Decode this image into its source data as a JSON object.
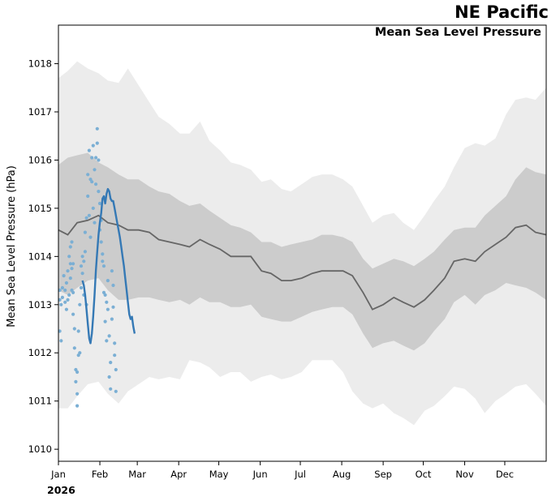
{
  "header": {
    "title": "NE Pacific",
    "subtitle": "Mean Sea Level Pressure",
    "year_label": "2026"
  },
  "chart_data": {
    "type": "line",
    "title": "NE Pacific",
    "subtitle": "Mean Sea Level Pressure",
    "ylabel": "Mean Sea Level Pressure (hPa)",
    "xlabel": "",
    "ylim": [
      1009.75,
      1018.8
    ],
    "xlim_day_of_year": [
      1,
      366
    ],
    "yticks": [
      1010,
      1011,
      1012,
      1013,
      1014,
      1015,
      1016,
      1017,
      1018
    ],
    "month_ticks": [
      {
        "label": "Jan",
        "day": 1
      },
      {
        "label": "Feb",
        "day": 32
      },
      {
        "label": "Mar",
        "day": 60
      },
      {
        "label": "Apr",
        "day": 91
      },
      {
        "label": "May",
        "day": 121
      },
      {
        "label": "Jun",
        "day": 152
      },
      {
        "label": "Jul",
        "day": 182
      },
      {
        "label": "Aug",
        "day": 213
      },
      {
        "label": "Sep",
        "day": 244
      },
      {
        "label": "Oct",
        "day": 274
      },
      {
        "label": "Nov",
        "day": 305
      },
      {
        "label": "Dec",
        "day": 335
      }
    ],
    "grid": false,
    "legend": "none",
    "colors": {
      "outer_band": "#ececec",
      "inner_band": "#cccccc",
      "climatology_line": "#666666",
      "observed_line": "#3579b5",
      "observed_points": "#7bafd4"
    },
    "climatology_days": [
      1,
      8,
      15,
      23,
      31,
      38,
      46,
      53,
      61,
      69,
      76,
      84,
      92,
      99,
      107,
      114,
      122,
      130,
      137,
      145,
      153,
      160,
      168,
      175,
      183,
      191,
      198,
      206,
      214,
      221,
      229,
      236,
      244,
      252,
      259,
      267,
      275,
      282,
      290,
      297,
      305,
      313,
      320,
      328,
      336,
      343,
      351,
      358,
      366
    ],
    "climatology_mean": [
      1014.55,
      1014.45,
      1014.7,
      1014.75,
      1014.85,
      1014.7,
      1014.65,
      1014.55,
      1014.55,
      1014.5,
      1014.35,
      1014.3,
      1014.25,
      1014.2,
      1014.35,
      1014.25,
      1014.15,
      1014.0,
      1014.0,
      1014.0,
      1013.7,
      1013.65,
      1013.5,
      1013.5,
      1013.55,
      1013.65,
      1013.7,
      1013.7,
      1013.7,
      1013.6,
      1013.25,
      1012.9,
      1013.0,
      1013.15,
      1013.05,
      1012.95,
      1013.1,
      1013.3,
      1013.55,
      1013.9,
      1013.95,
      1013.9,
      1014.1,
      1014.25,
      1014.4,
      1014.6,
      1014.65,
      1014.5,
      1014.45
    ],
    "climatology_inner_upper": [
      1015.9,
      1016.05,
      1016.1,
      1016.15,
      1015.95,
      1015.85,
      1015.7,
      1015.6,
      1015.6,
      1015.45,
      1015.35,
      1015.3,
      1015.15,
      1015.05,
      1015.1,
      1014.95,
      1014.8,
      1014.65,
      1014.6,
      1014.5,
      1014.3,
      1014.3,
      1014.2,
      1014.25,
      1014.3,
      1014.35,
      1014.45,
      1014.45,
      1014.4,
      1014.3,
      1013.95,
      1013.75,
      1013.85,
      1013.95,
      1013.9,
      1013.8,
      1013.95,
      1014.1,
      1014.35,
      1014.55,
      1014.6,
      1014.6,
      1014.85,
      1015.05,
      1015.25,
      1015.6,
      1015.85,
      1015.75,
      1015.7
    ],
    "climatology_inner_lower": [
      1013.3,
      1013.2,
      1013.35,
      1013.5,
      1013.55,
      1013.3,
      1013.1,
      1013.1,
      1013.15,
      1013.15,
      1013.1,
      1013.05,
      1013.1,
      1013.0,
      1013.15,
      1013.05,
      1013.05,
      1012.95,
      1012.95,
      1013.0,
      1012.75,
      1012.7,
      1012.65,
      1012.65,
      1012.75,
      1012.85,
      1012.9,
      1012.95,
      1012.95,
      1012.8,
      1012.4,
      1012.1,
      1012.2,
      1012.25,
      1012.15,
      1012.05,
      1012.2,
      1012.45,
      1012.7,
      1013.05,
      1013.2,
      1013.0,
      1013.2,
      1013.3,
      1013.45,
      1013.4,
      1013.35,
      1013.25,
      1013.1
    ],
    "climatology_outer_upper": [
      1017.7,
      1017.85,
      1018.05,
      1017.9,
      1017.8,
      1017.65,
      1017.6,
      1017.9,
      1017.55,
      1017.2,
      1016.9,
      1016.75,
      1016.55,
      1016.55,
      1016.8,
      1016.4,
      1016.2,
      1015.95,
      1015.9,
      1015.8,
      1015.55,
      1015.6,
      1015.4,
      1015.35,
      1015.5,
      1015.65,
      1015.7,
      1015.7,
      1015.6,
      1015.45,
      1015.05,
      1014.7,
      1014.85,
      1014.9,
      1014.7,
      1014.55,
      1014.85,
      1015.15,
      1015.45,
      1015.85,
      1016.25,
      1016.35,
      1016.3,
      1016.45,
      1016.95,
      1017.25,
      1017.3,
      1017.25,
      1017.5
    ],
    "climatology_outer_lower": [
      1010.85,
      1010.85,
      1011.1,
      1011.35,
      1011.4,
      1011.15,
      1010.95,
      1011.2,
      1011.35,
      1011.5,
      1011.45,
      1011.5,
      1011.45,
      1011.85,
      1011.8,
      1011.7,
      1011.5,
      1011.6,
      1011.6,
      1011.4,
      1011.5,
      1011.55,
      1011.45,
      1011.5,
      1011.6,
      1011.85,
      1011.85,
      1011.85,
      1011.6,
      1011.2,
      1010.95,
      1010.85,
      1010.95,
      1010.75,
      1010.65,
      1010.5,
      1010.8,
      1010.9,
      1011.1,
      1011.3,
      1011.25,
      1011.05,
      1010.75,
      1011.0,
      1011.15,
      1011.3,
      1011.35,
      1011.15,
      1010.9
    ],
    "observed_days": [
      10,
      11,
      12,
      13,
      14,
      15,
      16,
      17,
      18,
      19,
      20,
      21,
      22,
      23,
      24,
      25,
      26,
      27,
      28,
      29,
      30,
      31,
      32,
      33,
      34,
      35,
      36,
      37,
      38,
      39,
      40,
      41,
      42,
      43,
      44,
      45,
      46,
      47,
      48,
      49,
      50,
      51,
      52,
      53,
      54,
      55,
      56,
      57,
      58,
      59
    ],
    "observed_line": [
      1013.5,
      1013.4,
      1013.2,
      1012.9,
      1012.6,
      1012.3,
      1012.2,
      1012.4,
      1012.75,
      1013.2,
      1013.7,
      1014.1,
      1014.45,
      1014.7,
      1014.9,
      1015.2,
      1015.25,
      1015.1,
      1015.3,
      1015.4,
      1015.35,
      1015.2,
      1015.15,
      1015.15,
      1015.0,
      1014.85,
      1014.7,
      1014.55,
      1014.4,
      1014.2,
      1014.0,
      1013.8,
      1013.55,
      1013.3,
      1013.05,
      1012.8,
      1012.7,
      1012.75,
      1012.55,
      1012.4
    ],
    "observed_line_days": [
      19,
      20,
      21,
      22,
      23,
      24,
      25,
      26,
      27,
      28,
      29,
      30,
      31,
      32,
      33,
      34,
      35,
      36,
      37,
      38,
      39,
      40,
      41,
      42,
      43,
      44,
      45,
      46,
      47,
      48,
      49,
      50,
      51,
      52,
      53,
      54,
      55,
      56,
      57,
      58
    ],
    "observed_points": [
      [
        2,
        1012.45
      ],
      [
        2,
        1013.1
      ],
      [
        2,
        1013.3
      ],
      [
        3,
        1012.25
      ],
      [
        3,
        1013.0
      ],
      [
        4,
        1013.15
      ],
      [
        4,
        1013.35
      ],
      [
        5,
        1013.6
      ],
      [
        6,
        1013.3
      ],
      [
        6,
        1013.05
      ],
      [
        7,
        1013.45
      ],
      [
        7,
        1012.9
      ],
      [
        8,
        1013.7
      ],
      [
        8,
        1013.1
      ],
      [
        9,
        1013.2
      ],
      [
        9,
        1014.0
      ],
      [
        10,
        1014.2
      ],
      [
        10,
        1013.85
      ],
      [
        10,
        1013.55
      ],
      [
        11,
        1013.3
      ],
      [
        11,
        1013.75
      ],
      [
        11,
        1014.3
      ],
      [
        12,
        1013.85
      ],
      [
        12,
        1012.8
      ],
      [
        12,
        1013.25
      ],
      [
        13,
        1012.5
      ],
      [
        13,
        1012.1
      ],
      [
        14,
        1011.65
      ],
      [
        14,
        1011.4
      ],
      [
        15,
        1011.15
      ],
      [
        15,
        1010.9
      ],
      [
        15,
        1011.6
      ],
      [
        16,
        1011.95
      ],
      [
        16,
        1012.45
      ],
      [
        17,
        1012.0
      ],
      [
        17,
        1013.0
      ],
      [
        18,
        1013.35
      ],
      [
        18,
        1013.8
      ],
      [
        19,
        1014.0
      ],
      [
        19,
        1013.65
      ],
      [
        20,
        1013.2
      ],
      [
        20,
        1013.9
      ],
      [
        21,
        1014.1
      ],
      [
        21,
        1014.5
      ],
      [
        22,
        1014.8
      ],
      [
        22,
        1013.0
      ],
      [
        23,
        1015.7
      ],
      [
        23,
        1015.25
      ],
      [
        24,
        1016.2
      ],
      [
        24,
        1014.85
      ],
      [
        25,
        1015.6
      ],
      [
        25,
        1014.4
      ],
      [
        26,
        1016.05
      ],
      [
        26,
        1015.55
      ],
      [
        27,
        1016.3
      ],
      [
        27,
        1015.0
      ],
      [
        28,
        1015.8
      ],
      [
        28,
        1014.7
      ],
      [
        29,
        1016.05
      ],
      [
        29,
        1015.5
      ],
      [
        30,
        1016.65
      ],
      [
        30,
        1016.35
      ],
      [
        31,
        1016.0
      ],
      [
        31,
        1015.35
      ],
      [
        32,
        1015.1
      ],
      [
        32,
        1014.55
      ],
      [
        33,
        1014.75
      ],
      [
        33,
        1014.3
      ],
      [
        34,
        1014.05
      ],
      [
        34,
        1013.9
      ],
      [
        35,
        1013.8
      ],
      [
        35,
        1013.25
      ],
      [
        36,
        1013.2
      ],
      [
        36,
        1012.65
      ],
      [
        37,
        1012.25
      ],
      [
        37,
        1013.05
      ],
      [
        38,
        1013.5
      ],
      [
        38,
        1012.9
      ],
      [
        39,
        1012.35
      ],
      [
        39,
        1011.5
      ],
      [
        40,
        1011.8
      ],
      [
        40,
        1011.25
      ],
      [
        41,
        1012.7
      ],
      [
        41,
        1013.7
      ],
      [
        42,
        1013.4
      ],
      [
        42,
        1012.95
      ],
      [
        43,
        1012.2
      ],
      [
        43,
        1011.95
      ],
      [
        44,
        1011.65
      ],
      [
        44,
        1011.2
      ]
    ]
  }
}
